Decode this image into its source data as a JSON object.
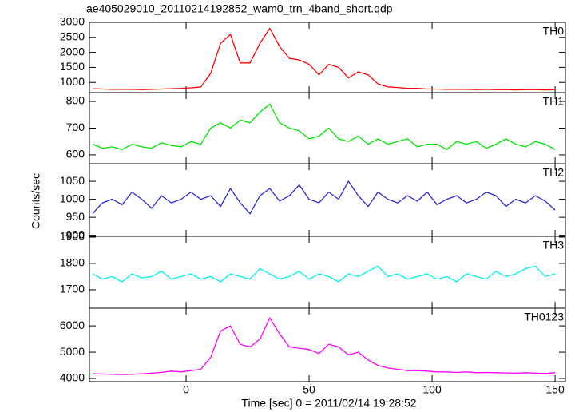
{
  "title": "ae405029010_20110214192852_wam0_trn_4band_short.qdp",
  "y_label": "Counts/sec",
  "x_label": "Time [sec] 0 = 2011/02/14 19:28:52",
  "chart_data": [
    {
      "type": "line",
      "xlim": [
        -39.3,
        154.2
      ],
      "xticks": [
        0,
        50,
        100,
        150
      ],
      "ylim": [
        660,
        3000
      ],
      "yticks": [
        1000,
        1500,
        2000,
        2500,
        3000
      ],
      "x": [
        -38,
        -34,
        -30,
        -26,
        -22,
        -18,
        -14,
        -10,
        -6,
        -2,
        2,
        6,
        10,
        14,
        18,
        22,
        26,
        30,
        34,
        38,
        42,
        46,
        50,
        54,
        58,
        62,
        66,
        70,
        74,
        78,
        82,
        86,
        90,
        94,
        98,
        102,
        106,
        110,
        114,
        118,
        122,
        126,
        130,
        134,
        138,
        142,
        146,
        150
      ],
      "series": [
        {
          "name": "TH0",
          "color": "#ff0000",
          "values": [
            790,
            780,
            770,
            770,
            770,
            760,
            770,
            780,
            790,
            800,
            820,
            850,
            1300,
            2300,
            2600,
            1650,
            1650,
            2300,
            2800,
            2200,
            1800,
            1750,
            1600,
            1250,
            1600,
            1500,
            1150,
            1350,
            1250,
            950,
            850,
            830,
            800,
            800,
            780,
            780,
            770,
            770,
            770,
            760,
            770,
            760,
            760,
            750,
            760,
            760,
            750,
            760
          ]
        }
      ]
    },
    {
      "type": "line",
      "xlim": [
        -39.3,
        154.2
      ],
      "xticks": [
        0,
        50,
        100,
        150
      ],
      "ylim": [
        567,
        833
      ],
      "yticks": [
        600,
        700,
        800
      ],
      "x": [
        -38,
        -34,
        -30,
        -26,
        -22,
        -18,
        -14,
        -10,
        -6,
        -2,
        2,
        6,
        10,
        14,
        18,
        22,
        26,
        30,
        34,
        38,
        42,
        46,
        50,
        54,
        58,
        62,
        66,
        70,
        74,
        78,
        82,
        86,
        90,
        94,
        98,
        102,
        106,
        110,
        114,
        118,
        122,
        126,
        130,
        134,
        138,
        142,
        146,
        150
      ],
      "series": [
        {
          "name": "TH1",
          "color": "#00e600",
          "values": [
            640,
            625,
            630,
            620,
            640,
            630,
            625,
            645,
            635,
            630,
            650,
            640,
            700,
            720,
            700,
            730,
            720,
            760,
            790,
            720,
            700,
            690,
            660,
            670,
            700,
            660,
            650,
            670,
            640,
            660,
            640,
            650,
            660,
            630,
            640,
            640,
            620,
            650,
            640,
            650,
            625,
            640,
            660,
            640,
            630,
            650,
            640,
            620
          ]
        }
      ]
    },
    {
      "type": "line",
      "xlim": [
        -39.3,
        154.2
      ],
      "xticks": [
        0,
        50,
        100,
        150
      ],
      "ylim": [
        897,
        1099
      ],
      "yticks": [
        900,
        950,
        1000,
        1050
      ],
      "x": [
        -38,
        -34,
        -30,
        -26,
        -22,
        -18,
        -14,
        -10,
        -6,
        -2,
        2,
        6,
        10,
        14,
        18,
        22,
        26,
        30,
        34,
        38,
        42,
        46,
        50,
        54,
        58,
        62,
        66,
        70,
        74,
        78,
        82,
        86,
        90,
        94,
        98,
        102,
        106,
        110,
        114,
        118,
        122,
        126,
        130,
        134,
        138,
        142,
        146,
        150
      ],
      "series": [
        {
          "name": "TH2",
          "color": "#2a2ad0",
          "values": [
            960,
            990,
            1000,
            985,
            1020,
            1000,
            975,
            1010,
            990,
            1000,
            1020,
            1000,
            1010,
            980,
            1030,
            990,
            960,
            1010,
            1030,
            995,
            1010,
            1040,
            1000,
            990,
            1020,
            1000,
            1050,
            1010,
            980,
            1020,
            1000,
            990,
            1010,
            995,
            1020,
            985,
            1000,
            1010,
            990,
            1000,
            1020,
            1010,
            980,
            1000,
            990,
            1010,
            995,
            970
          ]
        }
      ]
    },
    {
      "type": "line",
      "xlim": [
        -39.3,
        154.2
      ],
      "xticks": [
        0,
        50,
        100,
        150
      ],
      "ylim": [
        1630,
        1903
      ],
      "yticks": [
        1700,
        1800,
        1900
      ],
      "x": [
        -38,
        -34,
        -30,
        -26,
        -22,
        -18,
        -14,
        -10,
        -6,
        -2,
        2,
        6,
        10,
        14,
        18,
        22,
        26,
        30,
        34,
        38,
        42,
        46,
        50,
        54,
        58,
        62,
        66,
        70,
        74,
        78,
        82,
        86,
        90,
        94,
        98,
        102,
        106,
        110,
        114,
        118,
        122,
        126,
        130,
        134,
        138,
        142,
        146,
        150
      ],
      "series": [
        {
          "name": "TH3",
          "color": "#00f0f0",
          "values": [
            1760,
            1740,
            1750,
            1730,
            1760,
            1745,
            1750,
            1770,
            1740,
            1750,
            1760,
            1740,
            1750,
            1730,
            1760,
            1750,
            1740,
            1780,
            1760,
            1740,
            1750,
            1770,
            1740,
            1760,
            1750,
            1730,
            1760,
            1750,
            1770,
            1790,
            1750,
            1760,
            1740,
            1750,
            1760,
            1740,
            1750,
            1730,
            1760,
            1750,
            1740,
            1770,
            1750,
            1760,
            1780,
            1790,
            1750,
            1760
          ]
        }
      ]
    },
    {
      "type": "line",
      "xlim": [
        -39.3,
        154.2
      ],
      "xticks": [
        0,
        50,
        100,
        150
      ],
      "ylim": [
        3880,
        6670
      ],
      "yticks": [
        4000,
        5000,
        6000
      ],
      "x": [
        -38,
        -34,
        -30,
        -26,
        -22,
        -18,
        -14,
        -10,
        -6,
        -2,
        2,
        6,
        10,
        14,
        18,
        22,
        26,
        30,
        34,
        38,
        42,
        46,
        50,
        54,
        58,
        62,
        66,
        70,
        74,
        78,
        82,
        86,
        90,
        94,
        98,
        102,
        106,
        110,
        114,
        118,
        122,
        126,
        130,
        134,
        138,
        142,
        146,
        150
      ],
      "series": [
        {
          "name": "TH0123",
          "color": "#ff00ff",
          "values": [
            4180,
            4170,
            4160,
            4150,
            4160,
            4180,
            4200,
            4230,
            4280,
            4250,
            4300,
            4350,
            4800,
            5800,
            6000,
            5300,
            5200,
            5500,
            6300,
            5700,
            5200,
            5150,
            5100,
            4950,
            5300,
            5200,
            4900,
            5000,
            4700,
            4500,
            4400,
            4350,
            4300,
            4300,
            4280,
            4250,
            4250,
            4230,
            4250,
            4220,
            4230,
            4220,
            4210,
            4200,
            4220,
            4200,
            4190,
            4220
          ]
        }
      ]
    }
  ]
}
